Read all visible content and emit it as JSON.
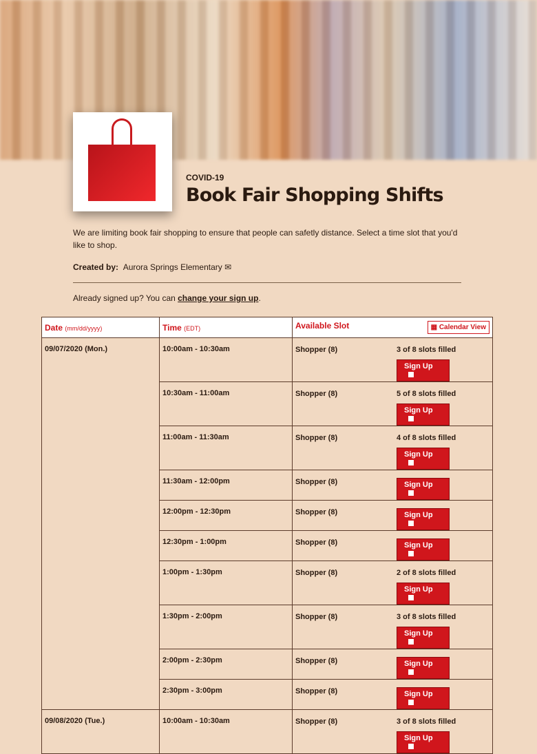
{
  "header": {
    "kicker": "COVID-19",
    "title": "Book Fair Shopping Shifts",
    "description": "We are limiting book fair shopping to ensure that people can safetly distance. Select a time slot that you'd like to shop.",
    "created_by_label": "Created by:",
    "creator": "Aurora Springs Elementary",
    "mail_icon": "✉",
    "already_prefix": "Already signed up? You can ",
    "change_link": "change your sign up",
    "already_suffix": "."
  },
  "table": {
    "col_date": "Date",
    "col_date_hint": "(mm/dd/yyyy)",
    "col_time": "Time",
    "col_time_hint": "(EDT)",
    "col_slot": "Available Slot",
    "calendar_button": "Calendar View",
    "calendar_icon": "calendar-icon",
    "signup_label": "Sign Up",
    "dates": [
      {
        "date": "09/07/2020 (Mon.)",
        "rows": [
          {
            "time": "10:00am - 10:30am",
            "slot": "Shopper (8)",
            "status": "3 of 8 slots filled"
          },
          {
            "time": "10:30am - 11:00am",
            "slot": "Shopper (8)",
            "status": "5 of 8 slots filled"
          },
          {
            "time": "11:00am - 11:30am",
            "slot": "Shopper (8)",
            "status": "4 of 8 slots filled"
          },
          {
            "time": "11:30am - 12:00pm",
            "slot": "Shopper (8)",
            "status": ""
          },
          {
            "time": "12:00pm - 12:30pm",
            "slot": "Shopper (8)",
            "status": ""
          },
          {
            "time": "12:30pm - 1:00pm",
            "slot": "Shopper (8)",
            "status": ""
          },
          {
            "time": "1:00pm - 1:30pm",
            "slot": "Shopper (8)",
            "status": "2 of 8 slots filled"
          },
          {
            "time": "1:30pm - 2:00pm",
            "slot": "Shopper (8)",
            "status": "3 of 8 slots filled"
          },
          {
            "time": "2:00pm - 2:30pm",
            "slot": "Shopper (8)",
            "status": ""
          },
          {
            "time": "2:30pm - 3:00pm",
            "slot": "Shopper (8)",
            "status": ""
          }
        ]
      },
      {
        "date": "09/08/2020 (Tue.)",
        "rows": [
          {
            "time": "10:00am - 10:30am",
            "slot": "Shopper (8)",
            "status": "3 of 8 slots filled"
          }
        ]
      }
    ]
  }
}
